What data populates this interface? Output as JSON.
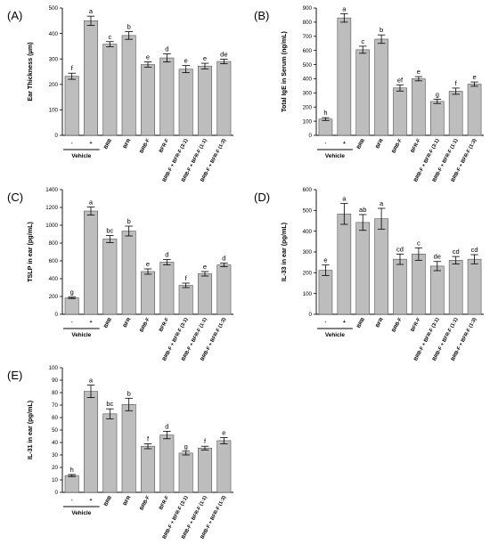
{
  "colors": {
    "bar": "#bdbdbd",
    "bar_edge": "#555555",
    "axis": "#000000"
  },
  "categories": [
    "-",
    "+",
    "BRB",
    "BFR",
    "BRB-F",
    "BFR-F",
    "BRB-F + BFR-F (3:1)",
    "BRB-F + BFR-F (1:1)",
    "BRB-F + BFR-F (1:3)"
  ],
  "vehicle_label": "Vehicle",
  "chart_data": [
    {
      "panel": "(A)",
      "type": "bar",
      "ylabel": "Ear Thickness (μm)",
      "ylim": [
        0,
        500
      ],
      "yticks": [
        0,
        100,
        200,
        300,
        400,
        500
      ],
      "values": [
        232,
        450,
        358,
        392,
        278,
        304,
        260,
        272,
        290
      ],
      "errors": [
        12,
        18,
        10,
        15,
        10,
        16,
        14,
        11,
        9
      ],
      "letters": [
        "f",
        "a",
        "c",
        "b",
        "e",
        "d",
        "e",
        "e",
        "de"
      ]
    },
    {
      "panel": "(B)",
      "type": "bar",
      "ylabel": "Total IgE in Serum (ng/mL)",
      "ylim": [
        0,
        900
      ],
      "yticks": [
        0,
        100,
        200,
        300,
        400,
        500,
        600,
        700,
        800,
        900
      ],
      "values": [
        115,
        830,
        605,
        680,
        335,
        400,
        240,
        312,
        362
      ],
      "errors": [
        10,
        30,
        25,
        30,
        22,
        15,
        15,
        22,
        15
      ],
      "letters": [
        "h",
        "a",
        "c",
        "b",
        "ef",
        "e",
        "g",
        "f",
        "e"
      ]
    },
    {
      "panel": "(C)",
      "type": "bar",
      "ylabel": "TSLP in ear (pg/mL)",
      "ylim": [
        0,
        1400
      ],
      "yticks": [
        0,
        200,
        400,
        600,
        800,
        1000,
        1200,
        1400
      ],
      "values": [
        185,
        1160,
        845,
        935,
        480,
        585,
        325,
        455,
        555
      ],
      "errors": [
        8,
        45,
        40,
        55,
        30,
        30,
        25,
        25,
        20
      ],
      "letters": [
        "g",
        "a",
        "bc",
        "b",
        "e",
        "d",
        "f",
        "e",
        "d"
      ]
    },
    {
      "panel": "(D)",
      "type": "bar",
      "ylabel": "IL-33 in ear (pg/mL)",
      "ylim": [
        0,
        600
      ],
      "yticks": [
        0,
        100,
        200,
        300,
        400,
        500,
        600
      ],
      "values": [
        212,
        483,
        442,
        460,
        265,
        290,
        232,
        260,
        265
      ],
      "errors": [
        25,
        50,
        38,
        50,
        25,
        30,
        22,
        18,
        22
      ],
      "letters": [
        "e",
        "a",
        "ab",
        "a",
        "cd",
        "c",
        "de",
        "cd",
        "cd"
      ]
    },
    {
      "panel": "(E)",
      "type": "bar",
      "ylabel": "IL-31 in ear (pg/mL)",
      "ylim": [
        0,
        100
      ],
      "yticks": [
        0,
        10,
        20,
        30,
        40,
        50,
        60,
        70,
        80,
        90,
        100
      ],
      "values": [
        13.5,
        81,
        63,
        70.5,
        37,
        46,
        31.5,
        35.5,
        41.5
      ],
      "errors": [
        0.8,
        5,
        4,
        5,
        2,
        3,
        1.5,
        1.5,
        2.5
      ],
      "letters": [
        "h",
        "a",
        "bc",
        "b",
        "f",
        "d",
        "g",
        "f",
        "e"
      ]
    }
  ]
}
